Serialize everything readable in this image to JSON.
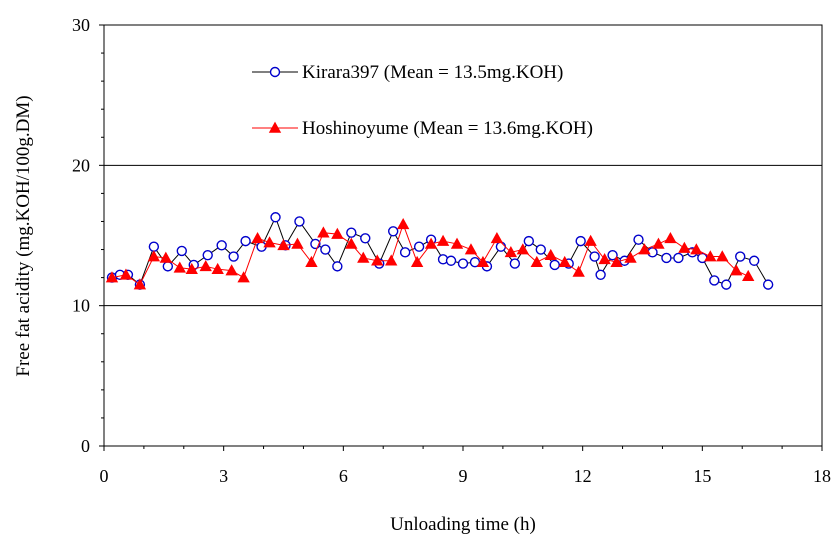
{
  "chart_data": {
    "type": "line",
    "xlabel": "Unloading time (h)",
    "ylabel": "Free fat acidity (mg.KOH/100g.DM)",
    "xlim": [
      0,
      18
    ],
    "ylim": [
      0,
      30
    ],
    "xticks": [
      0,
      3,
      6,
      9,
      12,
      15,
      18
    ],
    "yticks": [
      0,
      10,
      20,
      30
    ],
    "grid": "horizontal major lines",
    "legend_position": "upper-center inside plot",
    "series": [
      {
        "name": "Kirara397 (Mean = 13.5mg.KOH)",
        "color": "#0000cc",
        "marker": "open-circle",
        "x": [
          0.2,
          0.4,
          0.6,
          0.9,
          1.25,
          1.6,
          1.95,
          2.25,
          2.6,
          2.95,
          3.25,
          3.55,
          3.95,
          4.3,
          4.55,
          4.9,
          5.3,
          5.55,
          5.85,
          6.2,
          6.55,
          6.9,
          7.25,
          7.55,
          7.9,
          8.2,
          8.5,
          8.7,
          9.0,
          9.3,
          9.6,
          9.95,
          10.3,
          10.65,
          10.95,
          11.3,
          11.65,
          11.95,
          12.3,
          12.45,
          12.75,
          13.05,
          13.4,
          13.75,
          14.1,
          14.4,
          14.75,
          15.0,
          15.3,
          15.6,
          15.95,
          16.3,
          16.65
        ],
        "y": [
          12.0,
          12.2,
          12.2,
          11.5,
          14.2,
          12.8,
          13.9,
          12.9,
          13.6,
          14.3,
          13.5,
          14.6,
          14.2,
          16.3,
          14.3,
          16.0,
          14.4,
          14.0,
          12.8,
          15.2,
          14.8,
          13.0,
          15.3,
          13.8,
          14.2,
          14.7,
          13.3,
          13.2,
          13.0,
          13.1,
          12.8,
          14.2,
          13.0,
          14.6,
          14.0,
          12.9,
          13.0,
          14.6,
          13.5,
          12.2,
          13.6,
          13.2,
          14.7,
          13.8,
          13.4,
          13.4,
          13.8,
          13.4,
          11.8,
          11.5,
          13.5,
          13.2,
          11.5
        ]
      },
      {
        "name": "Hoshinoyume (Mean = 13.6mg.KOH)",
        "color": "#ff0000",
        "marker": "filled-triangle",
        "x": [
          0.2,
          0.55,
          0.9,
          1.25,
          1.55,
          1.9,
          2.2,
          2.55,
          2.85,
          3.2,
          3.5,
          3.85,
          4.15,
          4.5,
          4.85,
          5.2,
          5.5,
          5.85,
          6.2,
          6.5,
          6.85,
          7.2,
          7.5,
          7.85,
          8.2,
          8.5,
          8.85,
          9.2,
          9.5,
          9.85,
          10.2,
          10.5,
          10.85,
          11.2,
          11.55,
          11.9,
          12.2,
          12.55,
          12.85,
          13.2,
          13.55,
          13.9,
          14.2,
          14.55,
          14.85,
          15.2,
          15.5,
          15.85,
          16.15
        ],
        "y": [
          12.0,
          12.2,
          11.5,
          13.5,
          13.4,
          12.7,
          12.6,
          12.8,
          12.6,
          12.5,
          12.0,
          14.8,
          14.5,
          14.3,
          14.4,
          13.1,
          15.2,
          15.1,
          14.4,
          13.4,
          13.2,
          13.2,
          15.8,
          13.1,
          14.4,
          14.6,
          14.4,
          14.0,
          13.1,
          14.8,
          13.8,
          14.0,
          13.1,
          13.6,
          13.1,
          12.4,
          14.6,
          13.3,
          13.1,
          13.4,
          14.0,
          14.4,
          14.8,
          14.1,
          14.0,
          13.5,
          13.5,
          12.5,
          12.1
        ]
      }
    ]
  }
}
